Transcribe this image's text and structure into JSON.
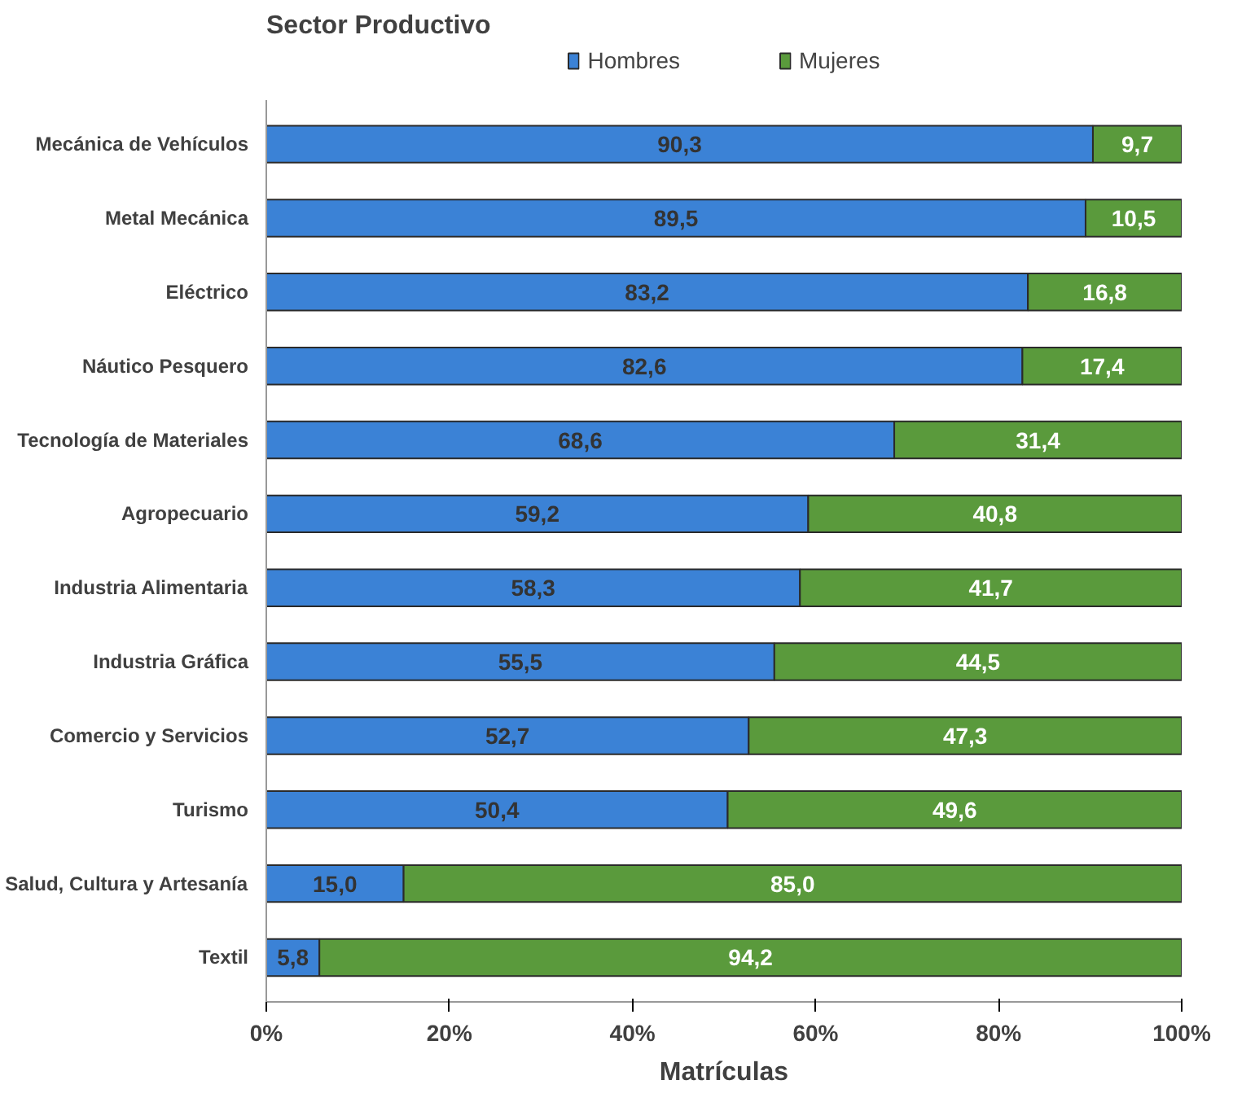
{
  "chart_data": {
    "type": "bar",
    "orientation": "horizontal",
    "stacked": true,
    "ylabel": "Sector Productivo",
    "xlabel": "Matrículas",
    "categories": [
      "Mecánica de Vehículos",
      "Metal Mecánica",
      "Eléctrico",
      "Náutico Pesquero",
      "Tecnología de Materiales",
      "Agropecuario",
      "Industria Alimentaria",
      "Industria Gráfica",
      "Comercio y Servicios",
      "Turismo",
      "Salud, Cultura y Artesanía",
      "Textil"
    ],
    "series": [
      {
        "name": "Hombres",
        "color": "#3b82d6",
        "values": [
          90.3,
          89.5,
          83.2,
          82.6,
          68.6,
          59.2,
          58.3,
          55.5,
          52.7,
          50.4,
          15.0,
          5.8
        ],
        "value_labels": [
          "90,3",
          "89,5",
          "83,2",
          "82,6",
          "68,6",
          "59,2",
          "58,3",
          "55,5",
          "52,7",
          "50,4",
          "15,0",
          "5,8"
        ]
      },
      {
        "name": "Mujeres",
        "color": "#5a9a3c",
        "values": [
          9.7,
          10.5,
          16.8,
          17.4,
          31.4,
          40.8,
          41.7,
          44.5,
          47.3,
          49.6,
          85.0,
          94.2
        ],
        "value_labels": [
          "9,7",
          "10,5",
          "16,8",
          "17,4",
          "31,4",
          "40,8",
          "41,7",
          "44,5",
          "47,3",
          "49,6",
          "85,0",
          "94,2"
        ]
      }
    ],
    "xlim": [
      0,
      100
    ],
    "xticks": [
      {
        "value": 0,
        "label": "0%"
      },
      {
        "value": 20,
        "label": "20%"
      },
      {
        "value": 40,
        "label": "40%"
      },
      {
        "value": 60,
        "label": "60%"
      },
      {
        "value": 80,
        "label": "80%"
      },
      {
        "value": 100,
        "label": "100%"
      }
    ],
    "grid": false,
    "legend": "top"
  }
}
